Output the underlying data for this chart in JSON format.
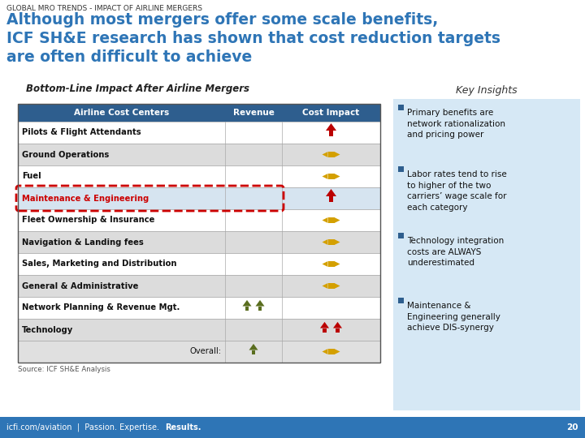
{
  "title_small": "GLOBAL MRO TRENDS - IMPACT OF AIRLINE MERGERS",
  "title_main": "Although most mergers offer some scale benefits,\nICF SH&E research has shown that cost reduction targets\nare often difficult to achieve",
  "subtitle_left": "Bottom-Line Impact After Airline Mergers",
  "subtitle_right": "Key Insights",
  "table_header": [
    "Airline Cost Centers",
    "Revenue",
    "Cost Impact"
  ],
  "rows": [
    "Pilots & Flight Attendants",
    "Ground Operations",
    "Fuel",
    "Maintenance & Engineering",
    "Fleet Ownership & Insurance",
    "Navigation & Landing fees",
    "Sales, Marketing and Distribution",
    "General & Administrative",
    "Network Planning & Revenue Mgt.",
    "Technology",
    "Overall:"
  ],
  "revenue_arrows": {
    "Network Planning & Revenue Mgt.": "two_up_olive",
    "Overall:": "one_up_olive"
  },
  "cost_arrows": {
    "Pilots & Flight Attendants": "one_up_red",
    "Ground Operations": "double_horiz_gold",
    "Fuel": "double_horiz_gold",
    "Maintenance & Engineering": "one_up_red",
    "Fleet Ownership & Insurance": "double_horiz_gold",
    "Navigation & Landing fees": "double_horiz_gold",
    "Sales, Marketing and Distribution": "double_horiz_gold",
    "General & Administrative": "double_horiz_gold",
    "Technology": "two_up_red",
    "Overall:": "double_horiz_gold"
  },
  "highlighted_row": "Maintenance & Engineering",
  "key_insights": [
    "Primary benefits are\nnetwork rationalization\nand pricing power",
    "Labor rates tend to rise\nto higher of the two\ncarriers’ wage scale for\neach category",
    "Technology integration\ncosts are ALWAYS\nunderestimated",
    "Maintenance &\nEngineering generally\nachieve DIS-synergy"
  ],
  "header_bg": "#2E5E8E",
  "header_fg": "#FFFFFF",
  "row_bg_even": "#FFFFFF",
  "row_bg_odd": "#DCDCDC",
  "highlight_bg": "#D6E4F0",
  "highlight_border": "#CC0000",
  "main_title_color": "#2E75B6",
  "subtitle_color": "#333333",
  "insights_bg": "#D6E8F5",
  "footer_bg": "#2E75B6",
  "footer_text": "icfi.com/aviation  |  Passion. Expertise. Results.",
  "footer_page": "20",
  "source_text": "Source: ICF SH&E Analysis",
  "arrow_red": "#BB0000",
  "arrow_gold": "#D4A000",
  "arrow_olive": "#5A6E1F"
}
